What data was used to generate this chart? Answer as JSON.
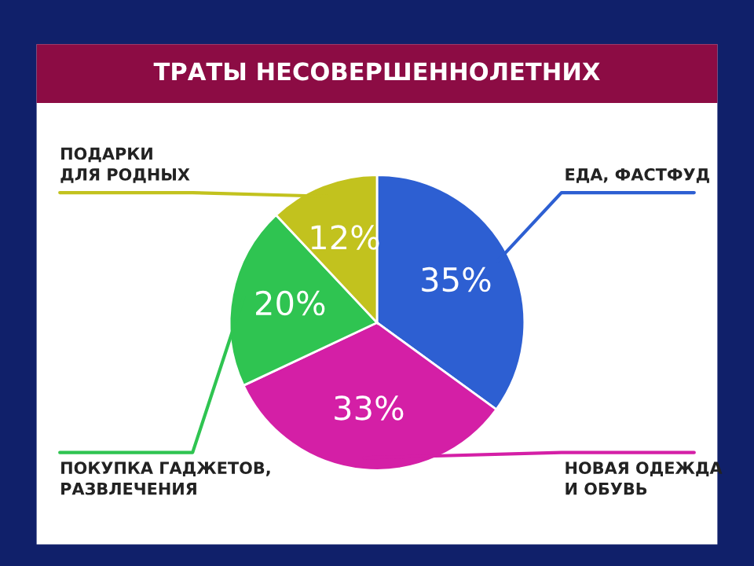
{
  "chart_data": {
    "type": "pie",
    "title": "ТРАТЫ НЕСОВЕРШЕННОЛЕТНИХ",
    "categories": [
      "ЕДА, ФАСТФУД",
      "НОВАЯ ОДЕЖДА\nИ ОБУВЬ",
      "ПОКУПКА ГАДЖЕТОВ,\nРАЗВЛЕЧЕНИЯ",
      "ПОДАРКИ\nДЛЯ РОДНЫХ"
    ],
    "values": [
      35,
      33,
      20,
      12
    ],
    "value_labels": [
      "35%",
      "33%",
      "20%",
      "12%"
    ],
    "colors": [
      "#2d5fd2",
      "#d41fa6",
      "#2fc451",
      "#c2c21e"
    ]
  }
}
